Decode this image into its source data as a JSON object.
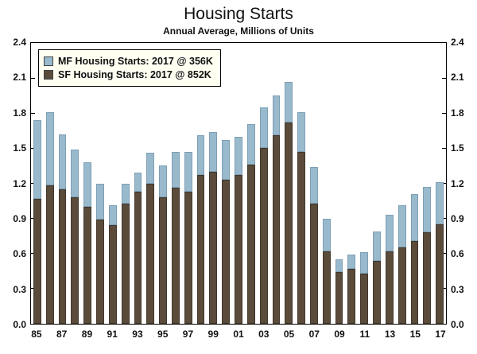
{
  "page": {
    "title": "Housing Starts",
    "subtitle": "Annual Average, Millions of Units"
  },
  "legend": {
    "items": [
      {
        "label": "MF Housing Starts: 2017 @ 356K",
        "color": "#99b9cd"
      },
      {
        "label": "SF Housing Starts: 2017 @ 852K",
        "color": "#5a4b3b"
      }
    ]
  },
  "chart_data": {
    "type": "bar",
    "stacked": true,
    "title": "Housing Starts",
    "subtitle": "Annual Average, Millions of Units",
    "xlabel": "",
    "ylabel": "Millions of Units",
    "ylim": [
      0.0,
      2.4
    ],
    "yticks": [
      0.0,
      0.3,
      0.6,
      0.9,
      1.2,
      1.5,
      1.8,
      2.1,
      2.4
    ],
    "grid": false,
    "legend_position": "top-left",
    "x": [
      1985,
      1986,
      1987,
      1988,
      1989,
      1990,
      1991,
      1992,
      1993,
      1994,
      1995,
      1996,
      1997,
      1998,
      1999,
      2000,
      2001,
      2002,
      2003,
      2004,
      2005,
      2006,
      2007,
      2008,
      2009,
      2010,
      2011,
      2012,
      2013,
      2014,
      2015,
      2016,
      2017
    ],
    "xtick_labels": [
      "85",
      "87",
      "89",
      "91",
      "93",
      "95",
      "97",
      "99",
      "01",
      "03",
      "05",
      "07",
      "09",
      "11",
      "13",
      "15",
      "17"
    ],
    "series": [
      {
        "name": "SF Housing Starts",
        "color": "#5a4b3b",
        "edge_color": "#42372b",
        "values": [
          1.07,
          1.18,
          1.15,
          1.08,
          1.0,
          0.89,
          0.84,
          1.03,
          1.13,
          1.2,
          1.08,
          1.16,
          1.13,
          1.27,
          1.3,
          1.23,
          1.27,
          1.36,
          1.5,
          1.61,
          1.72,
          1.47,
          1.03,
          0.62,
          0.44,
          0.47,
          0.43,
          0.54,
          0.62,
          0.65,
          0.71,
          0.78,
          0.852
        ]
      },
      {
        "name": "MF Housing Starts",
        "color": "#99b9cd",
        "edge_color": "#7e9fb4",
        "values": [
          0.67,
          0.63,
          0.47,
          0.41,
          0.38,
          0.31,
          0.17,
          0.17,
          0.16,
          0.26,
          0.27,
          0.31,
          0.34,
          0.34,
          0.34,
          0.34,
          0.33,
          0.35,
          0.35,
          0.34,
          0.35,
          0.34,
          0.31,
          0.28,
          0.11,
          0.12,
          0.18,
          0.25,
          0.31,
          0.36,
          0.4,
          0.39,
          0.356
        ]
      }
    ]
  }
}
